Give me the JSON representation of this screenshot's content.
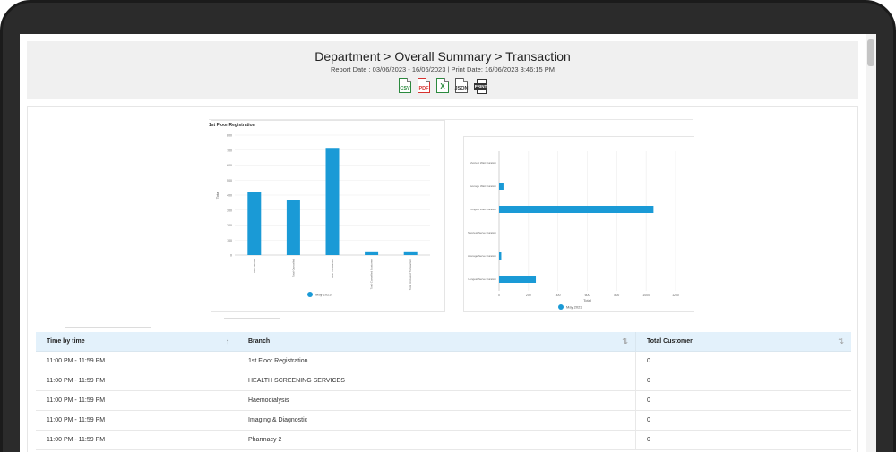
{
  "header": {
    "title": "Department > Overall Summary > Transaction",
    "subtitle": "Report Date : 03/06/2023 - 16/06/2023 | Print Date: 16/06/2023 3:46:15 PM",
    "export_icons": [
      {
        "name": "csv-export-icon",
        "label": "CSV"
      },
      {
        "name": "pdf-export-icon",
        "label": "PDF"
      },
      {
        "name": "excel-export-icon",
        "label": "X"
      },
      {
        "name": "json-export-icon",
        "label": "JSON"
      },
      {
        "name": "print-icon",
        "label": "PRINT"
      }
    ]
  },
  "chart_panel": {
    "title": "1st Floor Registration"
  },
  "chart_data": [
    {
      "type": "bar",
      "title": "",
      "ylabel": "Total",
      "xlabel": "",
      "ylim": [
        0,
        800
      ],
      "yticks": [
        "0",
        "100",
        "200",
        "300",
        "400",
        "500",
        "600",
        "700",
        "800"
      ],
      "categories": [
        "Total Served",
        "Total Cancelled",
        "Total Transaction",
        "Total Cancelled Customer",
        "Total Uncalled Transaction"
      ],
      "series": [
        {
          "name": "May 2023",
          "values": [
            420,
            370,
            715,
            25,
            25
          ]
        }
      ],
      "legend": "bottom",
      "color": "#1a9ad6"
    },
    {
      "type": "bar",
      "orientation": "horizontal",
      "title": "",
      "xlabel": "Total",
      "xlim": [
        0,
        1200
      ],
      "xticks": [
        "0",
        "200",
        "400",
        "600",
        "800",
        "1000",
        "1200"
      ],
      "categories": [
        "Shortest Wait Duration",
        "Average Wait Duration",
        "Longest Wait Duration",
        "Shortest Serve Duration",
        "Average Serve Duration",
        "Longest Serve Duration"
      ],
      "series": [
        {
          "name": "May 2023",
          "values": [
            0,
            30,
            1050,
            0,
            15,
            250
          ]
        }
      ],
      "legend": "bottom",
      "color": "#1a9ad6"
    }
  ],
  "table": {
    "columns": [
      "Time by time",
      "Branch",
      "Total Customer"
    ],
    "rows": [
      [
        "11:00 PM - 11:59 PM",
        "1st Floor Registration",
        "0"
      ],
      [
        "11:00 PM - 11:59 PM",
        "HEALTH SCREENING SERVICES",
        "0"
      ],
      [
        "11:00 PM - 11:59 PM",
        "Haemodialysis",
        "0"
      ],
      [
        "11:00 PM - 11:59 PM",
        "Imaging & Diagnostic",
        "0"
      ],
      [
        "11:00 PM - 11:59 PM",
        "Pharmacy 2",
        "0"
      ]
    ],
    "sort_icons": [
      "↑",
      "⇅",
      "⇅"
    ]
  },
  "colors": {
    "accent": "#1a9ad6",
    "header_bg": "#f0f0f0",
    "table_head_bg": "#e3f1fb",
    "bezel": "#1b1b1b"
  }
}
